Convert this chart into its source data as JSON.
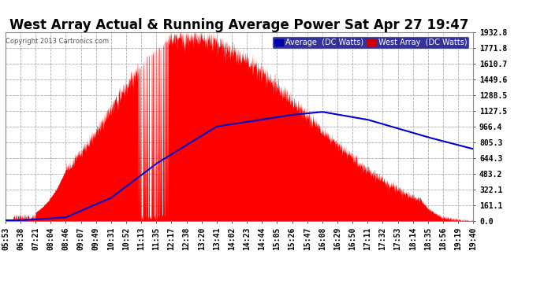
{
  "title": "West Array Actual & Running Average Power Sat Apr 27 19:47",
  "copyright": "Copyright 2013 Cartronics.com",
  "bg_color": "#ffffff",
  "plot_bg_color": "#ffffff",
  "grid_color": "#aaaaaa",
  "title_color": "#000000",
  "ytick_labels": [
    "0.0",
    "161.1",
    "322.1",
    "483.2",
    "644.3",
    "805.3",
    "966.4",
    "1127.5",
    "1288.5",
    "1449.6",
    "1610.7",
    "1771.8",
    "1932.8"
  ],
  "ytick_values": [
    0.0,
    161.1,
    322.1,
    483.2,
    644.3,
    805.3,
    966.4,
    1127.5,
    1288.5,
    1449.6,
    1610.7,
    1771.8,
    1932.8
  ],
  "ylim": [
    0,
    1932.8
  ],
  "xtick_labels": [
    "05:53",
    "06:38",
    "07:21",
    "08:04",
    "08:46",
    "09:07",
    "09:49",
    "10:31",
    "10:52",
    "11:13",
    "11:35",
    "12:17",
    "12:38",
    "13:20",
    "13:41",
    "14:02",
    "14:23",
    "14:44",
    "15:05",
    "15:26",
    "15:47",
    "16:08",
    "16:29",
    "16:50",
    "17:11",
    "17:32",
    "17:53",
    "18:14",
    "18:35",
    "18:56",
    "19:19",
    "19:40"
  ],
  "legend_avg_label": "Average  (DC Watts)",
  "legend_west_label": "West Array  (DC Watts)",
  "legend_avg_bg": "#0000aa",
  "legend_west_bg": "#cc0000",
  "line_color": "#0000cc",
  "fill_color": "#ff0000",
  "ytick_color": "#000000",
  "xtick_color": "#000000",
  "tick_fontsize": 7,
  "title_fontsize": 12,
  "copyright_color": "#555555"
}
